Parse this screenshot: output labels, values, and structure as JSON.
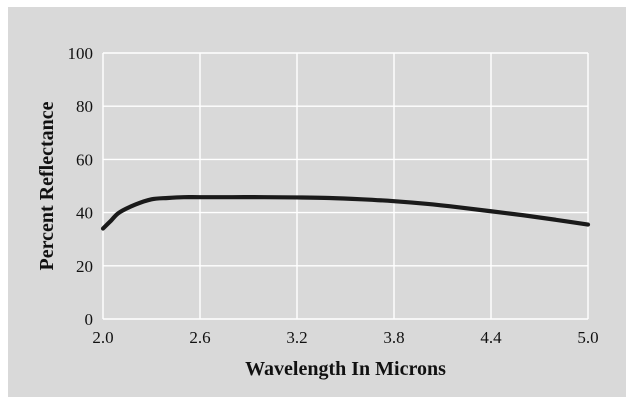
{
  "chart_data": {
    "type": "line",
    "title": "",
    "xlabel": "Wavelength In Microns",
    "ylabel": "Percent Reflectance",
    "xlim": [
      2.0,
      5.0
    ],
    "ylim": [
      0,
      100
    ],
    "x_ticks": [
      2.0,
      2.6,
      3.2,
      3.8,
      4.4,
      5.0
    ],
    "x_tick_labels": [
      "2.0",
      "2.6",
      "3.2",
      "3.8",
      "4.4",
      "5.0"
    ],
    "y_ticks": [
      0,
      20,
      40,
      60,
      80,
      100
    ],
    "y_tick_labels": [
      "0",
      "20",
      "40",
      "60",
      "80",
      "100"
    ],
    "grid": true,
    "legend": "none",
    "series": [
      {
        "x": [
          2.0,
          2.05,
          2.1,
          2.2,
          2.3,
          2.4,
          2.5,
          2.6,
          2.8,
          3.0,
          3.2,
          3.4,
          3.6,
          3.8,
          4.0,
          4.2,
          4.4,
          4.6,
          4.8,
          5.0
        ],
        "values": [
          34,
          37,
          40,
          43,
          45,
          45.5,
          45.8,
          45.8,
          45.8,
          45.8,
          45.7,
          45.5,
          45.0,
          44.3,
          43.3,
          42.0,
          40.5,
          39.0,
          37.3,
          35.5
        ]
      }
    ],
    "colors": {
      "background": "#d9d9d9",
      "line": "#1a1a1a",
      "grid": "#ffffff",
      "text": "#111111"
    }
  }
}
